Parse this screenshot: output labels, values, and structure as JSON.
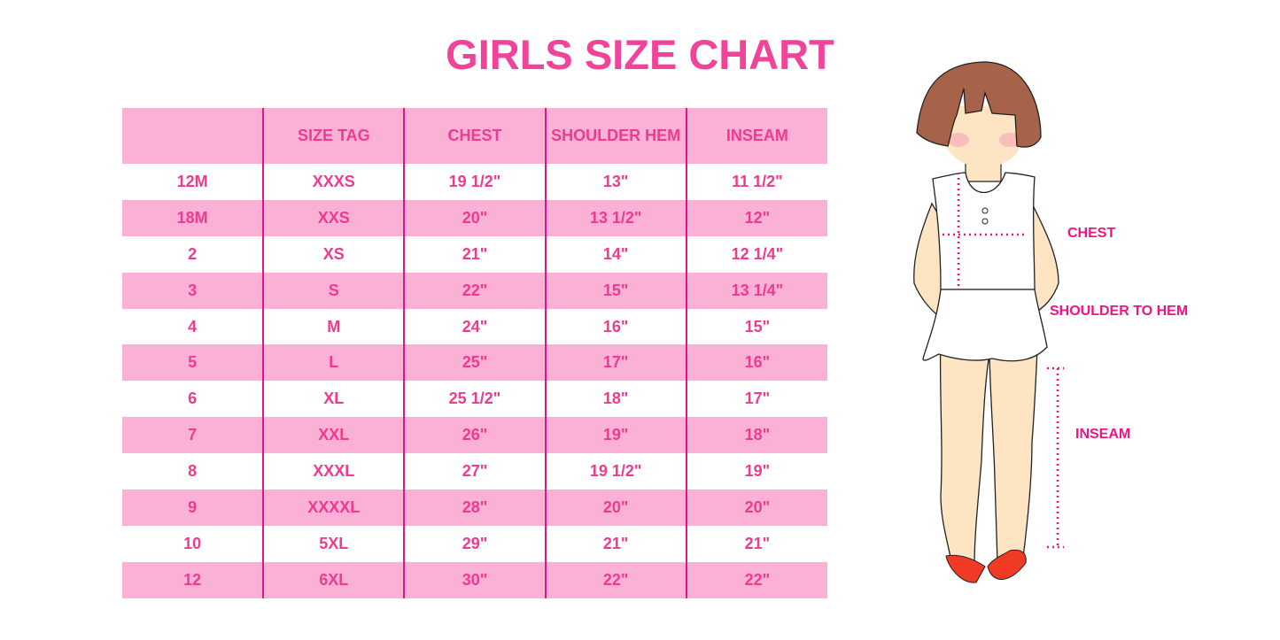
{
  "title": "GIRLS SIZE CHART",
  "table": {
    "headers": [
      "",
      "SIZE TAG",
      "CHEST",
      "SHOULDER HEM",
      "INSEAM"
    ],
    "rows": [
      [
        "12M",
        "XXXS",
        "19 1/2\"",
        "13\"",
        "11 1/2\""
      ],
      [
        "18M",
        "XXS",
        "20\"",
        "13 1/2\"",
        "12\""
      ],
      [
        "2",
        "XS",
        "21\"",
        "14\"",
        "12 1/4\""
      ],
      [
        "3",
        "S",
        "22\"",
        "15\"",
        "13 1/4\""
      ],
      [
        "4",
        "M",
        "24\"",
        "16\"",
        "15\""
      ],
      [
        "5",
        "L",
        "25\"",
        "17\"",
        "16\""
      ],
      [
        "6",
        "XL",
        "25 1/2\"",
        "18\"",
        "17\""
      ],
      [
        "7",
        "XXL",
        "26\"",
        "19\"",
        "18\""
      ],
      [
        "8",
        "XXXL",
        "27\"",
        "19 1/2\"",
        "19\""
      ],
      [
        "9",
        "XXXXL",
        "28\"",
        "20\"",
        "20\""
      ],
      [
        "10",
        "5XL",
        "29\"",
        "21\"",
        "21\""
      ],
      [
        "12",
        "6XL",
        "30\"",
        "22\"",
        "22\""
      ]
    ]
  },
  "figure": {
    "labels": {
      "chest": "CHEST",
      "shoulder_to_hem": "SHOULDER TO HEM",
      "inseam": "INSEAM"
    }
  },
  "colors": {
    "accent": "#ee3a8f",
    "row_pink": "#fbb1d6",
    "divider": "#e0168c"
  }
}
